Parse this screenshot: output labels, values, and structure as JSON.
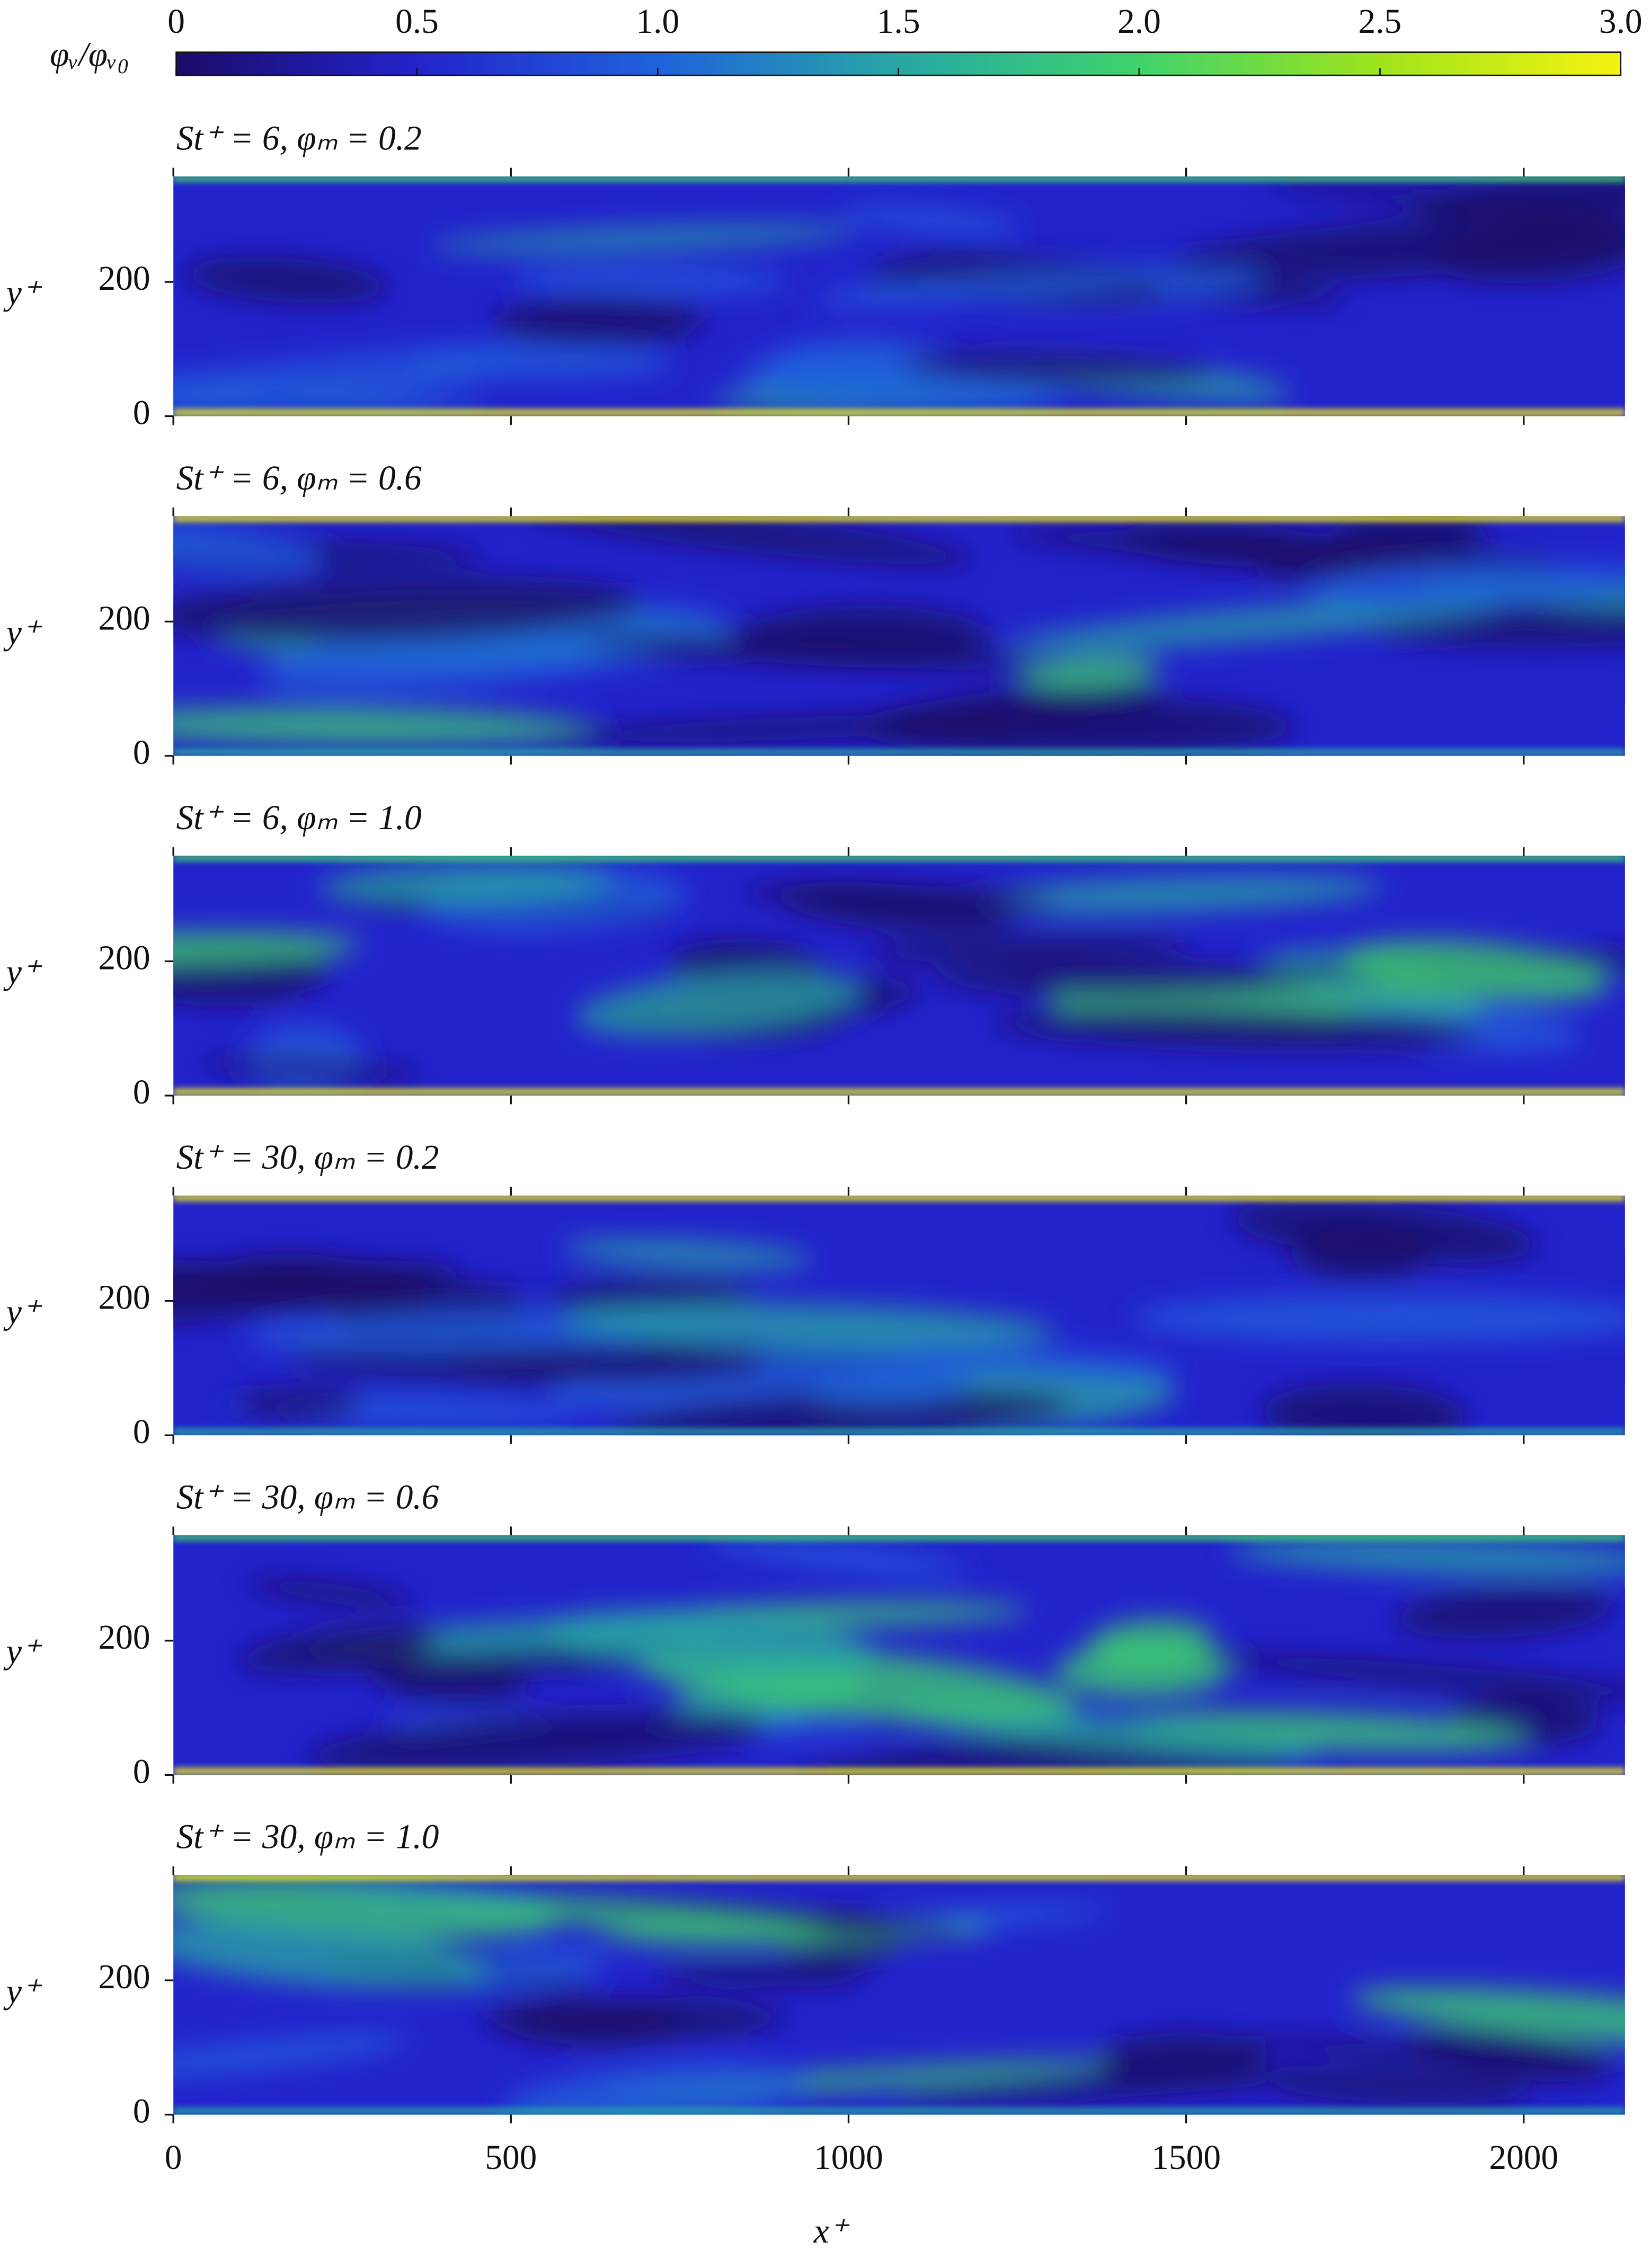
{
  "chart_data": {
    "type": "heatmap",
    "colorbar": {
      "label": "φᵥ/φᵥ₀",
      "lim": [
        0,
        3
      ],
      "ticks": [
        0,
        0.5,
        {
          "value": 1,
          "label": "1.0"
        },
        1.5,
        {
          "value": 2,
          "label": "2.0"
        },
        2.5,
        {
          "value": 3,
          "label": "3.0"
        }
      ]
    },
    "colormap": [
      "#1b0c68",
      "#2323cc",
      "#1f62dc",
      "#28a7a4",
      "#3fd36c",
      "#9fe41c",
      "#f6f310"
    ],
    "xlabel": "x⁺",
    "ylabel": "y⁺",
    "xlim": [
      0,
      2150
    ],
    "ylim": [
      0,
      357
    ],
    "xticks": [
      0,
      500,
      1000,
      1500,
      2000
    ],
    "yticks": [
      0,
      200
    ],
    "panels": [
      {
        "title": "St⁺ = 6, φₘ = 0.2"
      },
      {
        "title": "St⁺ = 6, φₘ = 0.6"
      },
      {
        "title": "St⁺ = 6, φₘ = 1.0"
      },
      {
        "title": "St⁺ = 30, φₘ = 0.2"
      },
      {
        "title": "St⁺ = 30, φₘ = 0.6"
      },
      {
        "title": "St⁺ = 30, φₘ = 1.0"
      }
    ]
  }
}
